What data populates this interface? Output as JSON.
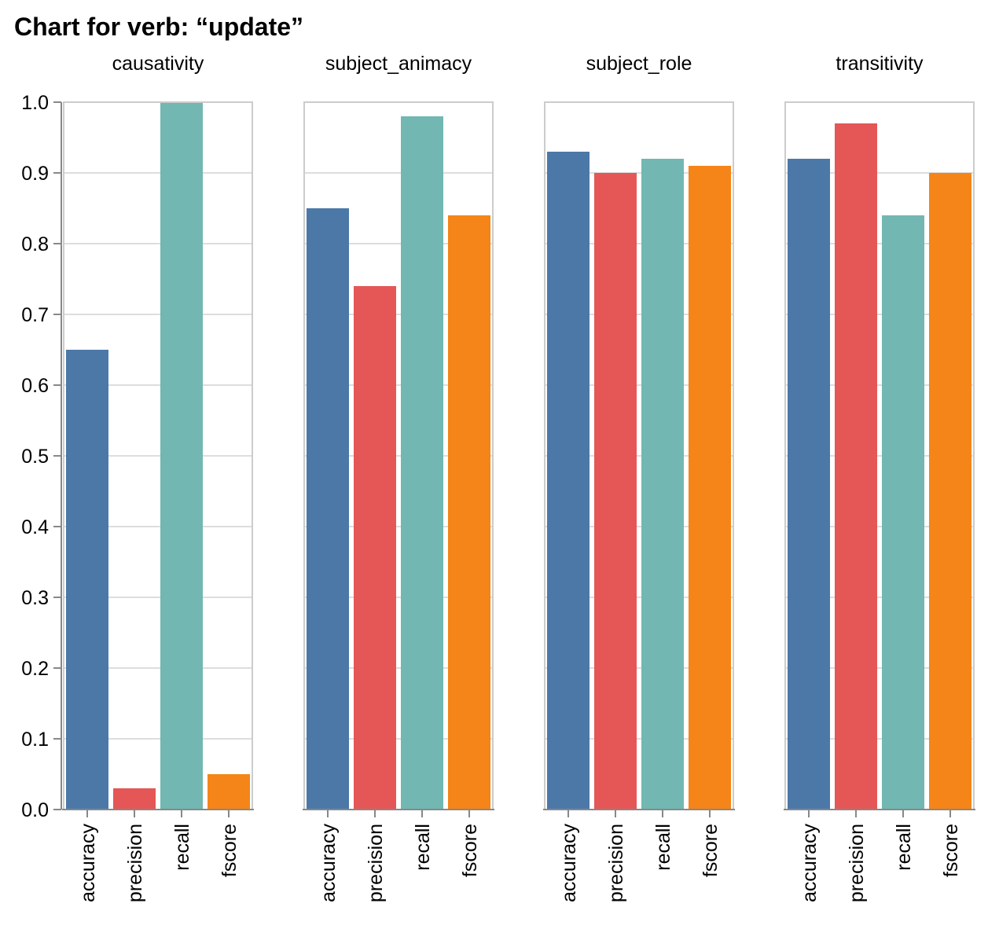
{
  "chart_data": {
    "type": "bar",
    "title": "Chart for verb: “update”",
    "facet_field": "",
    "categories": [
      "accuracy",
      "precision",
      "recall",
      "fscore"
    ],
    "colors": {
      "accuracy": "#4c78a8",
      "precision": "#e45756",
      "recall": "#72b7b2",
      "fscore": "#f58518"
    },
    "ylim": [
      0,
      1
    ],
    "yticks": [
      "0.0",
      "0.1",
      "0.2",
      "0.3",
      "0.4",
      "0.5",
      "0.6",
      "0.7",
      "0.8",
      "0.9",
      "1.0"
    ],
    "grid": true,
    "facets": [
      {
        "name": "causativity",
        "values": [
          0.65,
          0.03,
          1.0,
          0.05
        ]
      },
      {
        "name": "subject_animacy",
        "values": [
          0.85,
          0.74,
          0.98,
          0.84
        ]
      },
      {
        "name": "subject_role",
        "values": [
          0.93,
          0.9,
          0.92,
          0.91
        ]
      },
      {
        "name": "transitivity",
        "values": [
          0.92,
          0.97,
          0.84,
          0.9
        ]
      }
    ]
  }
}
